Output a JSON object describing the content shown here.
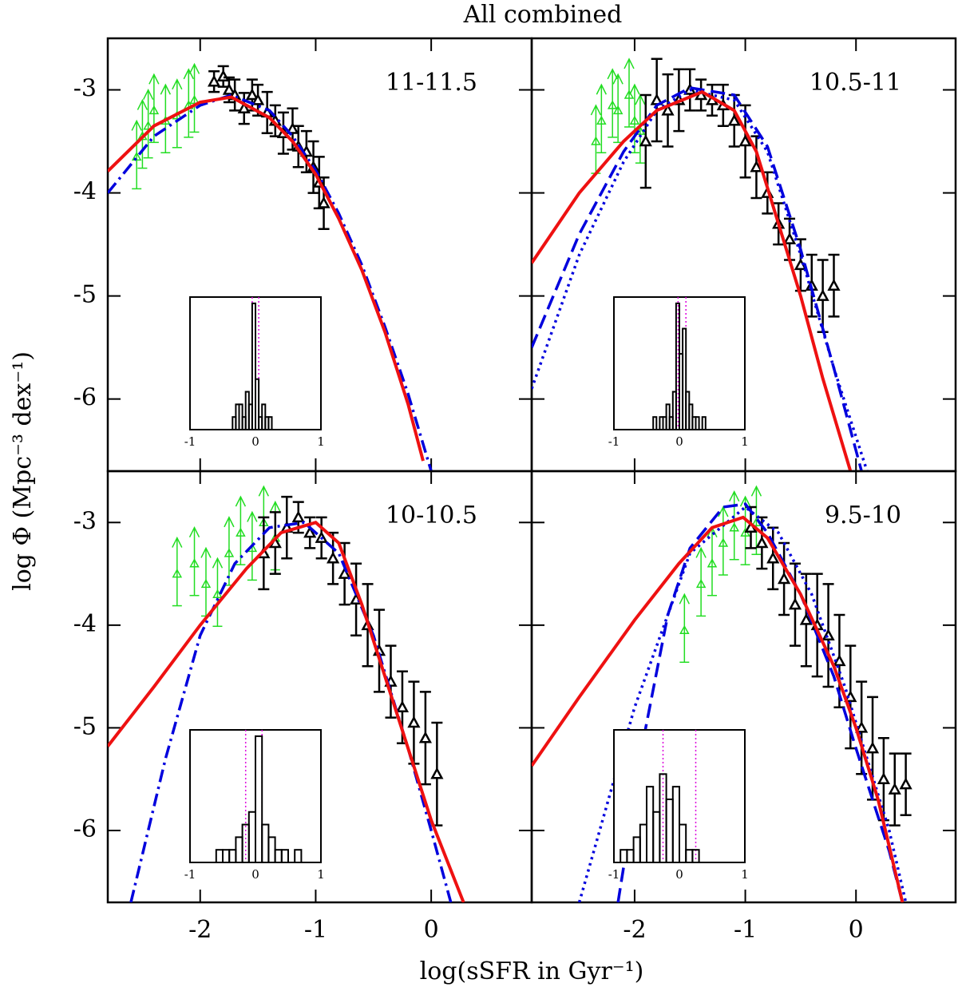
{
  "title": "All combined",
  "x_label": "log(sSFR in Gyr⁻¹)",
  "y_label": "log Φ   (Mpc⁻³ dex⁻¹)",
  "chart_data": [
    {
      "type": "line",
      "annotation": "11-11.5",
      "xlim": [
        -2.8,
        0.87
      ],
      "ylim": [
        -6.7,
        -2.5
      ],
      "xticks": [
        -2,
        -1,
        0
      ],
      "yticks": [
        -3,
        -4,
        -5,
        -6
      ],
      "series": [
        {
          "color": "#0000dd",
          "dash": "dashdot",
          "x": [
            -2.8,
            -2.4,
            -2.0,
            -1.73,
            -1.4,
            -1.2,
            -1.0,
            -0.8,
            -0.6,
            -0.4,
            -0.2,
            0.0
          ],
          "values": [
            -4.0,
            -3.45,
            -3.15,
            -3.05,
            -3.2,
            -3.45,
            -3.78,
            -4.2,
            -4.7,
            -5.3,
            -5.95,
            -6.7
          ]
        },
        {
          "color": "#ee1111",
          "dash": "solid",
          "x": [
            -2.8,
            -2.4,
            -2.0,
            -1.73,
            -1.4,
            -1.2,
            -1.0,
            -0.8,
            -0.6,
            -0.4,
            -0.2,
            -0.07
          ],
          "values": [
            -3.79,
            -3.35,
            -3.12,
            -3.07,
            -3.27,
            -3.5,
            -3.82,
            -4.25,
            -4.75,
            -5.35,
            -6.05,
            -6.6
          ]
        }
      ],
      "points": {
        "color": "#000000",
        "x": [
          -1.88,
          -1.8,
          -1.75,
          -1.7,
          -1.62,
          -1.55,
          -1.5,
          -1.42,
          -1.35,
          -1.28,
          -1.2,
          -1.15,
          -1.08,
          -1.02,
          -0.97,
          -0.93
        ],
        "values": [
          -2.92,
          -2.87,
          -3.0,
          -3.05,
          -3.18,
          -3.05,
          -3.1,
          -3.22,
          -3.3,
          -3.42,
          -3.38,
          -3.55,
          -3.6,
          -3.75,
          -3.9,
          -4.1
        ],
        "errors": [
          0.1,
          0.1,
          0.12,
          0.15,
          0.15,
          0.15,
          0.15,
          0.2,
          0.15,
          0.2,
          0.2,
          0.2,
          0.2,
          0.25,
          0.25,
          0.25
        ]
      },
      "lower_limits": {
        "color": "#22dd22",
        "x": [
          -2.55,
          -2.5,
          -2.45,
          -2.4,
          -2.3,
          -2.2,
          -2.1,
          -2.05
        ],
        "values": [
          -3.65,
          -3.45,
          -3.35,
          -3.2,
          -3.3,
          -3.25,
          -3.15,
          -3.1
        ]
      },
      "inset": {
        "type": "histogram",
        "bins": [
          -0.35,
          -0.3,
          -0.25,
          -0.2,
          -0.15,
          -0.1,
          -0.05,
          0.0,
          0.05,
          0.1,
          0.15,
          0.2,
          0.25
        ],
        "counts": [
          1,
          2,
          2,
          1,
          3,
          2,
          10,
          4,
          1,
          2,
          1,
          1
        ],
        "xlim": [
          -1,
          1
        ],
        "ylim": [
          0,
          10.5
        ],
        "xticks": [
          -1,
          0,
          1
        ],
        "lines": [
          -0.05,
          0.05
        ],
        "color": "#000000",
        "line_color": "#dd00dd"
      }
    },
    {
      "type": "line",
      "annotation": "10.5-11",
      "xlim": [
        -2.93,
        0.9
      ],
      "ylim": [
        -6.7,
        -2.5
      ],
      "xticks": [
        -2,
        -1,
        0
      ],
      "yticks": [
        -3,
        -4,
        -5,
        -6
      ],
      "series": [
        {
          "color": "#0000dd",
          "dash": "dotted",
          "x": [
            -2.93,
            -2.5,
            -2.1,
            -1.8,
            -1.5,
            -1.1,
            -0.8,
            -0.5,
            -0.2,
            0.1
          ],
          "values": [
            -5.9,
            -4.6,
            -3.7,
            -3.2,
            -3.0,
            -3.1,
            -3.6,
            -4.6,
            -5.7,
            -6.7
          ]
        },
        {
          "color": "#0000dd",
          "dash": "dashed",
          "x": [
            -2.93,
            -2.5,
            -2.1,
            -1.8,
            -1.5,
            -1.1,
            -0.8,
            -0.5,
            -0.2,
            0.05
          ],
          "values": [
            -5.5,
            -4.4,
            -3.6,
            -3.15,
            -2.98,
            -3.05,
            -3.55,
            -4.55,
            -5.7,
            -6.7
          ]
        },
        {
          "color": "#ee1111",
          "dash": "solid",
          "x": [
            -2.93,
            -2.5,
            -2.1,
            -1.8,
            -1.39,
            -1.1,
            -0.9,
            -0.7,
            -0.5,
            -0.3,
            -0.05
          ],
          "values": [
            -4.68,
            -4.0,
            -3.5,
            -3.2,
            -3.02,
            -3.2,
            -3.6,
            -4.3,
            -5.0,
            -5.8,
            -6.7
          ]
        }
      ],
      "points": {
        "color": "#000000",
        "x": [
          -1.9,
          -1.8,
          -1.7,
          -1.6,
          -1.5,
          -1.4,
          -1.3,
          -1.2,
          -1.1,
          -1.0,
          -0.9,
          -0.8,
          -0.7,
          -0.6,
          -0.5,
          -0.4,
          -0.3,
          -0.2
        ],
        "values": [
          -3.5,
          -3.1,
          -3.2,
          -3.1,
          -3.0,
          -3.05,
          -3.1,
          -3.15,
          -3.3,
          -3.5,
          -3.75,
          -4.0,
          -4.3,
          -4.45,
          -4.7,
          -4.9,
          -5.0,
          -4.9
        ],
        "errors": [
          0.45,
          0.4,
          0.35,
          0.3,
          0.2,
          0.15,
          0.15,
          0.2,
          0.25,
          0.35,
          0.3,
          0.2,
          0.2,
          0.2,
          0.25,
          0.3,
          0.35,
          0.3
        ]
      },
      "lower_limits": {
        "color": "#22dd22",
        "x": [
          -2.35,
          -2.3,
          -2.2,
          -2.15,
          -2.05,
          -2.0,
          -1.95
        ],
        "values": [
          -3.5,
          -3.3,
          -3.15,
          -3.2,
          -3.05,
          -3.3,
          -3.4
        ]
      },
      "inset": {
        "type": "histogram",
        "bins": [
          -0.4,
          -0.35,
          -0.3,
          -0.25,
          -0.2,
          -0.15,
          -0.1,
          -0.05,
          0.0,
          0.05,
          0.1,
          0.15,
          0.2,
          0.25,
          0.3,
          0.35,
          0.4
        ],
        "counts": [
          1,
          0,
          1,
          1,
          2,
          1,
          3,
          10,
          6,
          8,
          3,
          2,
          1,
          1,
          0,
          1
        ],
        "xlim": [
          -1,
          1
        ],
        "ylim": [
          0,
          10.5
        ],
        "xticks": [
          -1,
          0,
          1
        ],
        "lines": [
          -0.02,
          0.1
        ],
        "color": "#000000",
        "line_color": "#dd00dd"
      }
    },
    {
      "type": "line",
      "annotation": "10-10.5",
      "xlim": [
        -2.8,
        0.87
      ],
      "ylim": [
        -6.7,
        -2.5
      ],
      "xticks": [
        -2,
        -1,
        0
      ],
      "yticks": [
        -3,
        -4,
        -5,
        -6
      ],
      "series": [
        {
          "color": "#0000dd",
          "dash": "dashdot",
          "x": [
            -2.6,
            -2.3,
            -2.0,
            -1.7,
            -1.4,
            -1.1,
            -0.8,
            -0.5,
            -0.2,
            0.0,
            0.17
          ],
          "values": [
            -6.7,
            -5.3,
            -4.1,
            -3.4,
            -3.05,
            -3.0,
            -3.3,
            -4.1,
            -5.2,
            -6.0,
            -6.7
          ]
        },
        {
          "color": "#ee1111",
          "dash": "solid",
          "x": [
            -2.8,
            -2.4,
            -2.0,
            -1.6,
            -1.3,
            -1.0,
            -0.8,
            -0.6,
            -0.4,
            -0.2,
            0.0,
            0.28
          ],
          "values": [
            -5.18,
            -4.6,
            -4.0,
            -3.45,
            -3.1,
            -3.0,
            -3.2,
            -3.8,
            -4.5,
            -5.2,
            -5.9,
            -6.7
          ]
        }
      ],
      "points": {
        "color": "#000000",
        "x": [
          -1.45,
          -1.35,
          -1.25,
          -1.15,
          -1.05,
          -0.95,
          -0.85,
          -0.75,
          -0.65,
          -0.55,
          -0.45,
          -0.35,
          -0.25,
          -0.15,
          -0.05,
          0.05
        ],
        "values": [
          -3.3,
          -3.2,
          -3.05,
          -2.95,
          -3.1,
          -3.15,
          -3.35,
          -3.5,
          -3.75,
          -4.0,
          -4.25,
          -4.55,
          -4.8,
          -4.95,
          -5.1,
          -5.45
        ],
        "errors": [
          0.35,
          0.3,
          0.3,
          0.15,
          0.15,
          0.2,
          0.25,
          0.3,
          0.35,
          0.4,
          0.4,
          0.35,
          0.35,
          0.4,
          0.45,
          0.5
        ]
      },
      "lower_limits": {
        "color": "#22dd22",
        "x": [
          -2.2,
          -2.05,
          -1.95,
          -1.85,
          -1.75,
          -1.65,
          -1.55,
          -1.45,
          -1.35
        ],
        "values": [
          -3.5,
          -3.4,
          -3.6,
          -3.7,
          -3.3,
          -3.1,
          -3.25,
          -3.0,
          -3.15
        ]
      },
      "inset": {
        "type": "histogram",
        "bins": [
          -0.6,
          -0.5,
          -0.4,
          -0.3,
          -0.2,
          -0.1,
          0.0,
          0.1,
          0.2,
          0.3,
          0.4,
          0.5,
          0.6,
          0.7
        ],
        "counts": [
          1,
          1,
          1,
          2,
          3,
          4,
          10,
          3,
          2,
          1,
          1,
          0,
          1
        ],
        "xlim": [
          -1,
          1
        ],
        "ylim": [
          0,
          10.5
        ],
        "xticks": [
          -1,
          0,
          1
        ],
        "lines": [
          -0.15,
          0.1
        ],
        "color": "#000000",
        "line_color": "#dd00dd"
      }
    },
    {
      "type": "line",
      "annotation": "9.5-10",
      "xlim": [
        -2.93,
        0.9
      ],
      "ylim": [
        -6.7,
        -2.5
      ],
      "xticks": [
        -2,
        -1,
        0
      ],
      "yticks": [
        -3,
        -4,
        -5,
        -6
      ],
      "series": [
        {
          "color": "#0000dd",
          "dash": "dotted",
          "x": [
            -2.5,
            -2.0,
            -1.5,
            -1.0,
            -0.7,
            -0.4,
            -0.1,
            0.1,
            0.3,
            0.45
          ],
          "values": [
            -6.7,
            -4.8,
            -3.3,
            -2.85,
            -3.1,
            -3.7,
            -4.6,
            -5.3,
            -6.0,
            -6.7
          ]
        },
        {
          "color": "#0000dd",
          "dash": "dashed",
          "x": [
            -2.15,
            -1.9,
            -1.7,
            -1.5,
            -1.2,
            -1.0,
            -0.8,
            -0.5,
            -0.2,
            0.0,
            0.3,
            0.42
          ],
          "values": [
            -6.7,
            -5.0,
            -3.9,
            -3.25,
            -2.85,
            -2.82,
            -3.1,
            -3.7,
            -4.5,
            -5.2,
            -6.2,
            -6.7
          ]
        },
        {
          "color": "#ee1111",
          "dash": "solid",
          "x": [
            -2.93,
            -2.5,
            -2.0,
            -1.6,
            -1.3,
            -1.02,
            -0.8,
            -0.5,
            -0.2,
            0.0,
            0.2,
            0.42
          ],
          "values": [
            -5.37,
            -4.7,
            -3.95,
            -3.4,
            -3.05,
            -2.95,
            -3.15,
            -3.7,
            -4.4,
            -5.0,
            -5.7,
            -6.7
          ]
        }
      ],
      "points": {
        "color": "#000000",
        "x": [
          -0.95,
          -0.85,
          -0.75,
          -0.65,
          -0.55,
          -0.45,
          -0.35,
          -0.25,
          -0.15,
          -0.05,
          0.05,
          0.15,
          0.25,
          0.35,
          0.45
        ],
        "values": [
          -3.05,
          -3.2,
          -3.35,
          -3.55,
          -3.8,
          -3.95,
          -4.0,
          -4.1,
          -4.35,
          -4.7,
          -5.0,
          -5.2,
          -5.5,
          -5.6,
          -5.55
        ],
        "errors": [
          0.2,
          0.25,
          0.3,
          0.35,
          0.4,
          0.45,
          0.5,
          0.5,
          0.45,
          0.5,
          0.45,
          0.5,
          0.4,
          0.35,
          0.3
        ]
      },
      "lower_limits": {
        "color": "#22dd22",
        "x": [
          -1.55,
          -1.4,
          -1.3,
          -1.2,
          -1.1,
          -1.0,
          -0.9
        ],
        "values": [
          -4.05,
          -3.6,
          -3.4,
          -3.2,
          -3.05,
          -3.1,
          -3.0
        ]
      },
      "inset": {
        "type": "histogram",
        "bins": [
          -0.9,
          -0.8,
          -0.7,
          -0.6,
          -0.5,
          -0.4,
          -0.3,
          -0.2,
          -0.1,
          0.0,
          0.1,
          0.2,
          0.3
        ],
        "counts": [
          1,
          1,
          2,
          3,
          6,
          4,
          7,
          5,
          6,
          3,
          1,
          1
        ],
        "xlim": [
          -1,
          1
        ],
        "ylim": [
          0,
          10.5
        ],
        "xticks": [
          -1,
          0,
          1
        ],
        "lines": [
          -0.25,
          0.25
        ],
        "color": "#000000",
        "line_color": "#dd00dd"
      }
    }
  ]
}
